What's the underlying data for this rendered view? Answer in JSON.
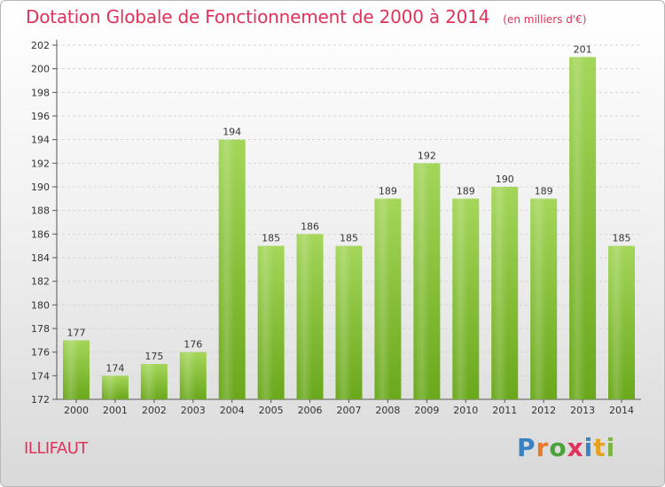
{
  "header": {
    "title": "Dotation Globale de Fonctionnement de 2000 à 2014",
    "subtitle": "(en milliers d'€)"
  },
  "commune": "ILLIFAUT",
  "brand": {
    "name": "Proxiti",
    "letter_colors": [
      "#3b82c4",
      "#e8782a",
      "#4aa23a",
      "#e0325a",
      "#3b82c4",
      "#e8a020",
      "#7cb342"
    ]
  },
  "colors": {
    "bar_light": "#a4d65a",
    "bar_dark": "#6aa81c",
    "accent": "#e0325a"
  },
  "chart_data": {
    "type": "bar",
    "categories": [
      "2000",
      "2001",
      "2002",
      "2003",
      "2004",
      "2005",
      "2006",
      "2007",
      "2008",
      "2009",
      "2010",
      "2011",
      "2012",
      "2013",
      "2014"
    ],
    "values": [
      177,
      174,
      175,
      176,
      194,
      185,
      186,
      185,
      189,
      192,
      189,
      190,
      189,
      201,
      185
    ],
    "ylim": [
      172,
      202
    ],
    "yticks": [
      172,
      174,
      176,
      178,
      180,
      182,
      184,
      186,
      188,
      190,
      192,
      194,
      196,
      198,
      200,
      202
    ],
    "grid": true,
    "xlabel": "",
    "ylabel": ""
  }
}
